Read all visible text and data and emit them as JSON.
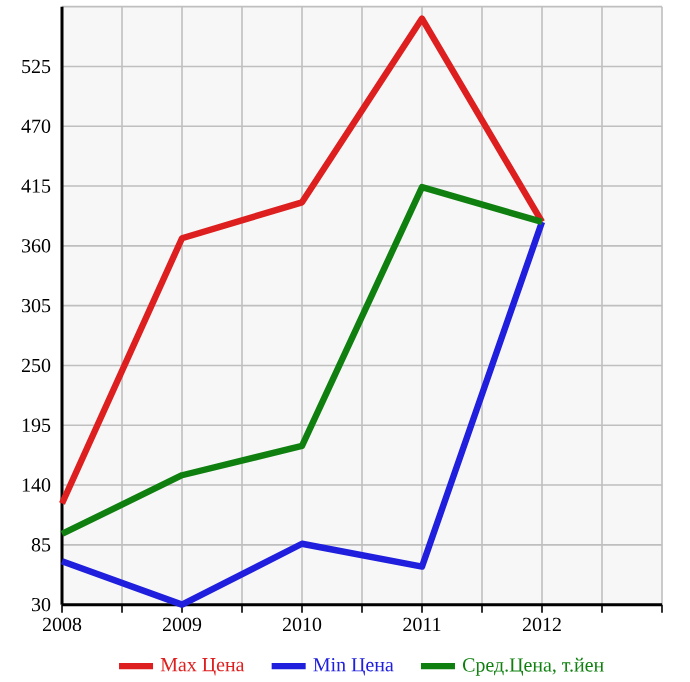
{
  "chart_data": {
    "type": "line",
    "x": [
      2008,
      2009,
      2010,
      2011,
      2012
    ],
    "series": [
      {
        "name": "Max Цена",
        "color": "#dd1f1f",
        "values": [
          123,
          367,
          400,
          569,
          382
        ]
      },
      {
        "name": "Min Цена",
        "color": "#1f1fdd",
        "values": [
          70,
          30,
          86,
          65,
          382
        ]
      },
      {
        "name": "Сред.Цена, т.йен",
        "color": "#0f800f",
        "values": [
          95,
          149,
          176,
          414,
          382
        ]
      }
    ],
    "xlim": [
      2008,
      2013
    ],
    "xticks": [
      2008,
      {
        "value": 2008.5,
        "label": null
      },
      2009,
      {
        "value": 2009.5,
        "label": null
      },
      2010,
      {
        "value": 2010.5,
        "label": null
      },
      2011,
      {
        "value": 2011.5,
        "label": null
      },
      2012,
      {
        "value": 2012.5,
        "label": null
      },
      {
        "value": 2013,
        "label": null
      }
    ],
    "ylim": [
      30,
      580
    ],
    "yticks": [
      30,
      85,
      140,
      195,
      250,
      305,
      360,
      415,
      470,
      525,
      {
        "value": 580,
        "label": null
      }
    ],
    "grid": true,
    "legend": "bottom",
    "marker": "none",
    "line_style": "solid"
  }
}
